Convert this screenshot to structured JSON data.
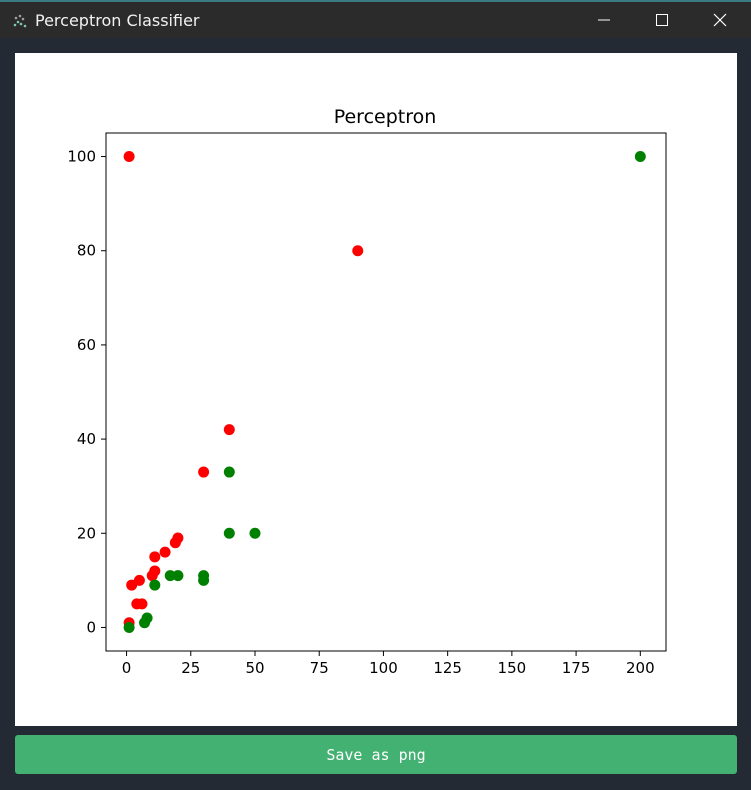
{
  "window": {
    "title": "Perceptron Classifier",
    "icon": "scatter-plot-icon",
    "controls": [
      "minimize-icon",
      "maximize-icon",
      "close-icon"
    ]
  },
  "save_button": {
    "label": "Save as png",
    "color": "#43b171"
  },
  "chart_data": {
    "type": "scatter",
    "title": "Perceptron",
    "xlabel": "",
    "ylabel": "",
    "xlim": [
      -8,
      210
    ],
    "ylim": [
      -5,
      105
    ],
    "xticks": [
      0,
      25,
      50,
      75,
      100,
      125,
      150,
      175,
      200
    ],
    "yticks": [
      0,
      20,
      40,
      60,
      80,
      100
    ],
    "grid": false,
    "series": [
      {
        "color": "#ff0000",
        "points": [
          [
            1,
            100
          ],
          [
            90,
            80
          ],
          [
            40,
            42
          ],
          [
            30,
            33
          ],
          [
            20,
            19
          ],
          [
            19,
            18
          ],
          [
            15,
            16
          ],
          [
            11,
            15
          ],
          [
            11,
            12
          ],
          [
            10,
            11
          ],
          [
            5,
            10
          ],
          [
            2,
            9
          ],
          [
            4,
            5
          ],
          [
            6,
            5
          ],
          [
            1,
            1
          ]
        ]
      },
      {
        "color": "#008000",
        "points": [
          [
            200,
            100
          ],
          [
            40,
            33
          ],
          [
            40,
            20
          ],
          [
            50,
            20
          ],
          [
            17,
            11
          ],
          [
            20,
            11
          ],
          [
            30,
            11
          ],
          [
            30,
            10
          ],
          [
            11,
            9
          ],
          [
            8,
            2
          ],
          [
            7,
            1
          ],
          [
            1,
            0
          ]
        ]
      }
    ]
  }
}
